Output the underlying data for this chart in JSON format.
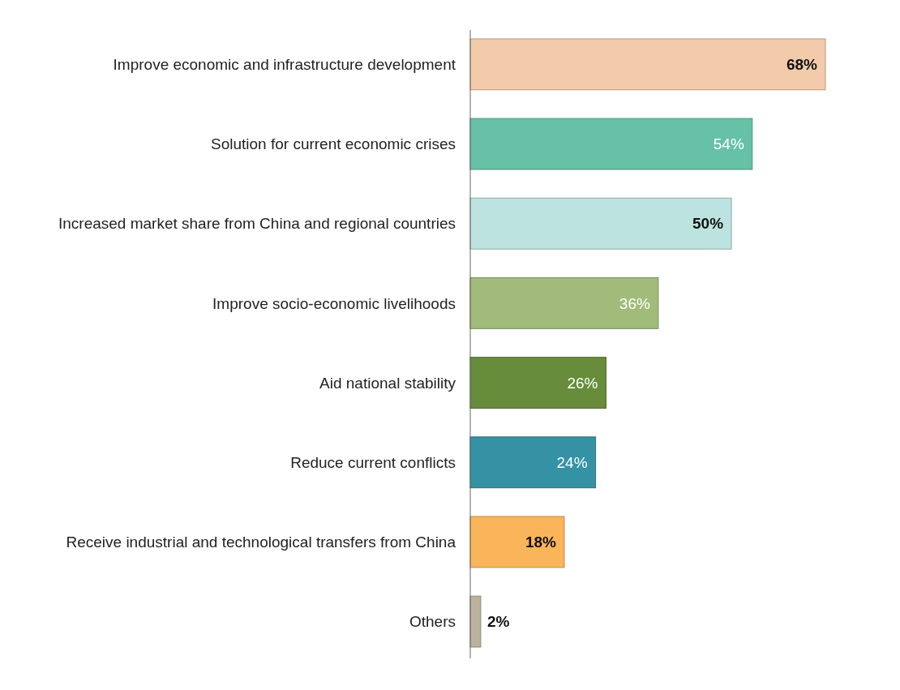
{
  "chart_data": {
    "type": "bar",
    "orientation": "horizontal",
    "categories": [
      "Improve economic and infrastructure development",
      "Solution for current economic crises",
      "Increased market share from China and regional countries",
      "Improve socio-economic livelihoods",
      "Aid national stability",
      "Reduce current conflicts",
      "Receive industrial and technological transfers from China",
      "Others"
    ],
    "values": [
      68,
      54,
      50,
      36,
      26,
      24,
      18,
      2
    ],
    "colors": [
      "#f2cbaa",
      "#66c1a6",
      "#bce3df",
      "#a1bb7a",
      "#668c3c",
      "#3592a4",
      "#fab45a",
      "#bcb29c"
    ],
    "value_labels": [
      "68%",
      "54%",
      "50%",
      "36%",
      "26%",
      "24%",
      "18%",
      "2%"
    ]
  }
}
